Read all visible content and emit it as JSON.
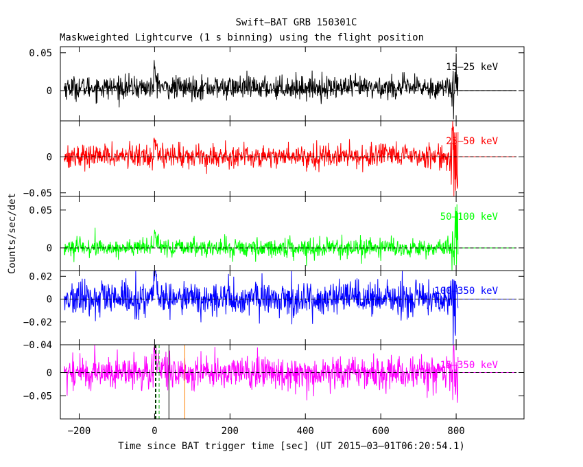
{
  "chart_data": {
    "type": "line",
    "title": "Swift–BAT GRB 150301C",
    "subtitle": "Maskweighted Lightcurve (1 s binning) using the flight position",
    "xlabel": "Time since BAT trigger time [sec] (UT 2015–03–01T06:20:54.1)",
    "ylabel": "Counts/sec/det",
    "xlim": [
      -250,
      980
    ],
    "x_ticks": [
      -200,
      0,
      200,
      400,
      600,
      800
    ],
    "x_tick_labels": [
      "−200",
      "0",
      "200",
      "400",
      "600",
      "800"
    ],
    "data_range": [
      -240,
      805
    ],
    "grid": false,
    "panels": [
      {
        "name": "15–25 keV",
        "color": "#000000",
        "ylim": [
          -0.04,
          0.058
        ],
        "y_ticks": [
          0,
          0.05
        ],
        "y_tick_labels": [
          "0",
          "0.05"
        ],
        "baseline": 0,
        "base_level": 0.004,
        "noise_amplitude": 0.0075,
        "peak_value": 0.02,
        "end_spike_range": [
          -0.04,
          0.05
        ]
      },
      {
        "name": "25–50 keV",
        "color": "#ff0000",
        "ylim": [
          -0.055,
          0.05
        ],
        "y_ticks": [
          -0.05,
          0
        ],
        "y_tick_labels": [
          "−0.05",
          "0"
        ],
        "baseline": 0,
        "base_level": 0.001,
        "noise_amplitude": 0.008,
        "peak_value": 0.024,
        "end_spike_range": [
          -0.05,
          0.04
        ]
      },
      {
        "name": "50–100 keV",
        "color": "#00ff00",
        "ylim": [
          -0.03,
          0.068
        ],
        "y_ticks": [
          0,
          0.05
        ],
        "y_tick_labels": [
          "0",
          "0.05"
        ],
        "baseline": 0,
        "base_level": 0.0,
        "noise_amplitude": 0.006,
        "peak_value": 0.02,
        "end_spike_range": [
          -0.03,
          0.06
        ]
      },
      {
        "name": "100–350 keV",
        "color": "#0000ff",
        "ylim": [
          -0.04,
          0.025
        ],
        "y_ticks": [
          -0.04,
          -0.02,
          0,
          0.02
        ],
        "y_tick_labels": [
          "−0.04",
          "−0.02",
          "0",
          "0.02"
        ],
        "baseline": 0,
        "base_level": 0.0,
        "noise_amplitude": 0.0075,
        "peak_value": 0.025,
        "end_spike_range": [
          -0.04,
          0.02
        ]
      },
      {
        "name": "15–350 keV",
        "color": "#ff00ff",
        "ylim": [
          -0.1,
          0.06
        ],
        "y_ticks": [
          -0.05,
          0
        ],
        "y_tick_labels": [
          "−0.05",
          "0"
        ],
        "baseline": 0,
        "base_level": 0.0,
        "noise_amplitude": 0.018,
        "peak_value": 0.055,
        "end_spike_range": [
          -0.1,
          0.06
        ]
      }
    ],
    "markers": [
      {
        "x": 2,
        "color": "#000000",
        "style": "dashed"
      },
      {
        "x": 4,
        "color": "#00aa00",
        "style": "dashed"
      },
      {
        "x": 12,
        "color": "#00aa00",
        "style": "dashed"
      },
      {
        "x": 38,
        "color": "#000000",
        "style": "solid"
      },
      {
        "x": 80,
        "color": "#ff8000",
        "style": "solid"
      }
    ]
  }
}
